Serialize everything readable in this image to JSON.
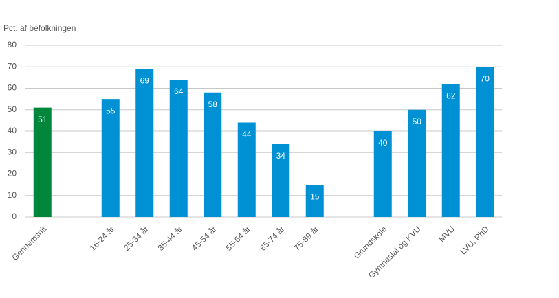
{
  "chart_data": {
    "type": "bar",
    "y_axis_label": "Pct. af befolkningen",
    "categories": [
      "Gennemsnit",
      null,
      "16-24 år",
      "25-34 år",
      "35-44 år",
      "45-54 år",
      "55-64 år",
      "65-74 år",
      "75-89 år",
      null,
      "Grundskole",
      "Gymnasial og KVU",
      "MVU",
      "LVU, PhD"
    ],
    "values": [
      51,
      null,
      55,
      69,
      64,
      58,
      44,
      34,
      15,
      null,
      40,
      50,
      62,
      70
    ],
    "colors": [
      "#00873c",
      null,
      "#0090d4",
      "#0090d4",
      "#0090d4",
      "#0090d4",
      "#0090d4",
      "#0090d4",
      "#0090d4",
      null,
      "#0090d4",
      "#0090d4",
      "#0090d4",
      "#0090d4"
    ],
    "ylim": [
      0,
      80
    ],
    "yticks": [
      0,
      10,
      20,
      30,
      40,
      50,
      60,
      70,
      80
    ],
    "grid": true
  }
}
